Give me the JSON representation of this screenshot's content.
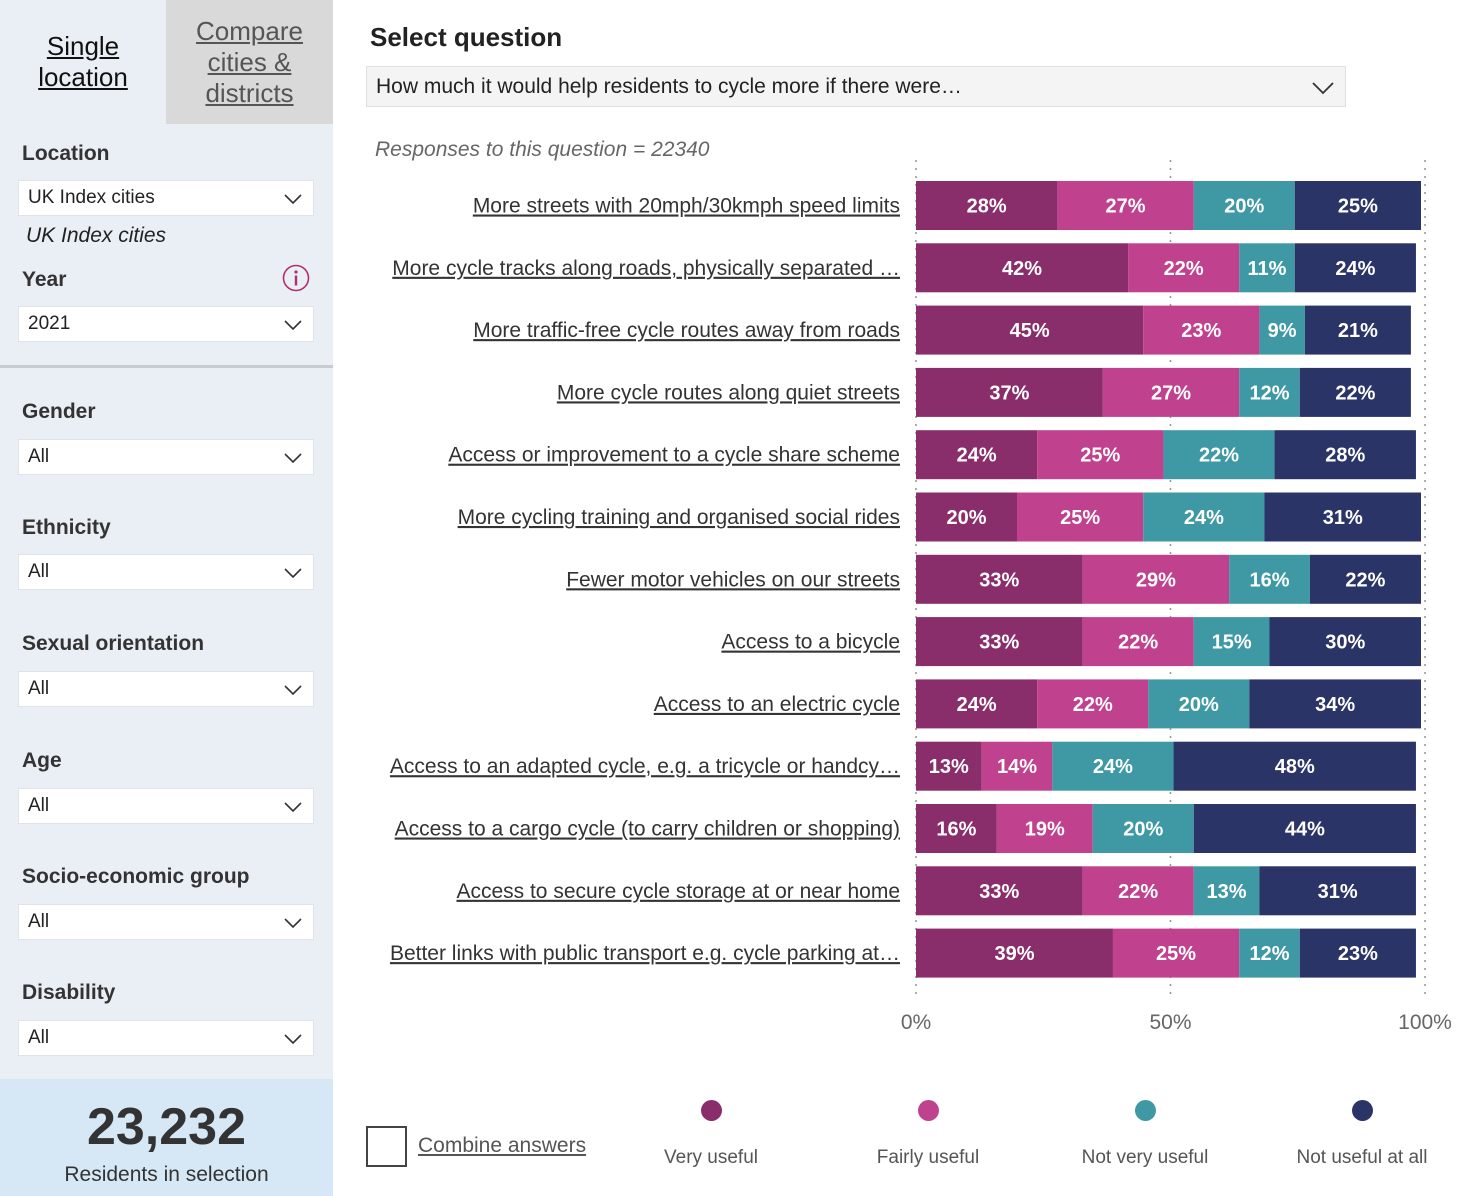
{
  "sidebar": {
    "tab_single": "Single location",
    "tab_compare": "Compare cities & districts",
    "location": {
      "label": "Location",
      "value": "UK Index cities",
      "subtitle": "UK Index cities"
    },
    "year": {
      "label": "Year",
      "value": "2021",
      "info_icon": "info-icon"
    },
    "filters": [
      {
        "label": "Gender",
        "value": "All"
      },
      {
        "label": "Ethnicity",
        "value": "All"
      },
      {
        "label": "Sexual orientation",
        "value": "All"
      },
      {
        "label": "Age",
        "value": "All"
      },
      {
        "label": "Socio-economic group",
        "value": "All"
      },
      {
        "label": "Disability",
        "value": "All"
      }
    ],
    "residents": {
      "count": "23,232",
      "label": "Residents in selection"
    }
  },
  "main": {
    "title": "Select question",
    "question": "How much it would help residents to cycle more if there were…",
    "responses": "Responses to this question = 22340",
    "combine_label": "Combine answers"
  },
  "colors": {
    "very_useful": "#8a2d6b",
    "fairly_useful": "#c0428f",
    "not_very_useful": "#3f99a5",
    "not_useful_at_all": "#2b3467"
  },
  "chart_data": {
    "type": "bar",
    "orientation": "horizontal",
    "stacked": true,
    "normalized": true,
    "categories": [
      "More streets with 20mph/30kmph speed limits",
      "More cycle tracks along roads, physically separated …",
      "More traffic-free cycle routes away from roads",
      "More cycle routes along quiet streets",
      "Access or improvement to a cycle share scheme",
      "More cycling training and organised social rides",
      "Fewer motor vehicles on our streets",
      "Access to a bicycle",
      "Access to an electric cycle",
      "Access to an adapted cycle, e.g. a tricycle or handcy…",
      "Access to a cargo cycle (to carry children or shopping)",
      "Access to secure cycle storage at or near home",
      "Better links with public transport e.g. cycle parking at…"
    ],
    "series": [
      {
        "name": "Very useful",
        "color": "#8a2d6b",
        "values": [
          28,
          42,
          45,
          37,
          24,
          20,
          33,
          33,
          24,
          13,
          16,
          33,
          39
        ]
      },
      {
        "name": "Fairly useful",
        "color": "#c0428f",
        "values": [
          27,
          22,
          23,
          27,
          25,
          25,
          29,
          22,
          22,
          14,
          19,
          22,
          25
        ]
      },
      {
        "name": "Not very useful",
        "color": "#3f99a5",
        "values": [
          20,
          11,
          9,
          12,
          22,
          24,
          16,
          15,
          20,
          24,
          20,
          13,
          12
        ]
      },
      {
        "name": "Not useful at all",
        "color": "#2b3467",
        "values": [
          25,
          24,
          21,
          22,
          28,
          31,
          22,
          30,
          34,
          48,
          44,
          31,
          23
        ]
      }
    ],
    "xlim": [
      0,
      100
    ],
    "x_ticks": [
      "0%",
      "50%",
      "100%"
    ],
    "gridlines": "dotted at 0%, 50%, 100%",
    "legend_position": "bottom"
  }
}
